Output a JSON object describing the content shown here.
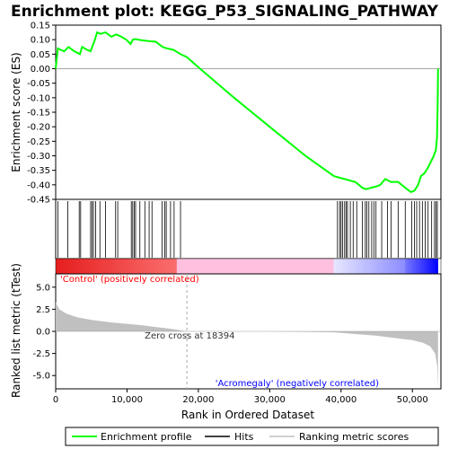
{
  "chart_data": {
    "type": "line",
    "title": "Enrichment plot: KEGG_P53_SIGNALING_PATHWAY",
    "x_label": "Rank in Ordered Dataset",
    "es_label": "Enrichment score (ES)",
    "metric_label": "Ranked list metric (tTest)",
    "x_range": [
      0,
      54000
    ],
    "x_ticks": [
      0,
      10000,
      20000,
      30000,
      40000,
      50000
    ],
    "x_tick_labels": [
      "0",
      "10,000",
      "20,000",
      "30,000",
      "40,000",
      "50,000"
    ],
    "es_range": [
      -0.45,
      0.15
    ],
    "es_ticks": [
      0.15,
      0.1,
      0.05,
      0.0,
      -0.05,
      -0.1,
      -0.15,
      -0.2,
      -0.25,
      -0.3,
      -0.35,
      -0.4,
      -0.45
    ],
    "es_tick_labels": [
      "0.15",
      "0.10",
      "0.05",
      "0.00",
      "-0.05",
      "-0.10",
      "-0.15",
      "-0.20",
      "-0.25",
      "-0.30",
      "-0.35",
      "-0.40",
      "-0.45"
    ],
    "metric_range": [
      -6.5,
      6.5
    ],
    "metric_ticks": [
      5.0,
      2.5,
      0.0,
      -2.5,
      -5.0
    ],
    "metric_tick_labels": [
      "5.0",
      "2.5",
      "0.0",
      "-2.5",
      "-5.0"
    ],
    "enrichment_profile": {
      "x": [
        0,
        300,
        700,
        1200,
        1800,
        2600,
        3400,
        3700,
        4400,
        4900,
        5200,
        5500,
        5800,
        6300,
        7000,
        7800,
        8500,
        9200,
        9900,
        10500,
        10800,
        11200,
        12000,
        13000,
        14000,
        15000,
        15600,
        16500,
        17500,
        18394,
        20000,
        25000,
        30000,
        35000,
        39000,
        40500,
        42000,
        43000,
        43500,
        44200,
        45000,
        45500,
        46200,
        47000,
        48000,
        49000,
        49800,
        50300,
        50800,
        51200,
        51700,
        52200,
        52600,
        53000,
        53300,
        53450,
        53550,
        53600
      ],
      "y": [
        0.0,
        0.07,
        0.065,
        0.06,
        0.075,
        0.06,
        0.05,
        0.075,
        0.065,
        0.06,
        0.08,
        0.1,
        0.125,
        0.12,
        0.125,
        0.11,
        0.118,
        0.11,
        0.1,
        0.085,
        0.1,
        0.102,
        0.098,
        0.095,
        0.093,
        0.075,
        0.07,
        0.065,
        0.05,
        0.04,
        0.005,
        -0.1,
        -0.2,
        -0.3,
        -0.37,
        -0.38,
        -0.39,
        -0.41,
        -0.415,
        -0.41,
        -0.405,
        -0.4,
        -0.38,
        -0.39,
        -0.39,
        -0.41,
        -0.425,
        -0.42,
        -0.4,
        -0.37,
        -0.36,
        -0.34,
        -0.32,
        -0.3,
        -0.28,
        -0.24,
        -0.12,
        0.0
      ]
    },
    "hits": [
      300,
      1700,
      3300,
      3500,
      4900,
      5100,
      5300,
      5600,
      6200,
      7000,
      8400,
      8700,
      10600,
      10800,
      11000,
      11200,
      11800,
      12500,
      13100,
      13500,
      14900,
      15300,
      15500,
      16100,
      16600,
      17500,
      39500,
      39800,
      40000,
      40200,
      40500,
      40700,
      40900,
      41300,
      41700,
      42200,
      43000,
      43400,
      43600,
      43900,
      44300,
      44600,
      44900,
      45700,
      46500,
      47000,
      48000,
      49000,
      49900,
      50300,
      50600,
      51000,
      51400,
      51800,
      52200,
      52700,
      53100,
      53300,
      53500
    ],
    "metric": {
      "x": [
        0,
        500,
        1500,
        3000,
        5000,
        8000,
        10000,
        12000,
        14000,
        16000,
        18394,
        20000,
        30000,
        39000,
        42000,
        45000,
        48000,
        50000,
        51500,
        52500,
        53200,
        53500,
        53600
      ],
      "y": [
        3.3,
        2.5,
        2.0,
        1.6,
        1.3,
        1.0,
        0.85,
        0.7,
        0.5,
        0.3,
        0.0,
        0.0,
        0.0,
        -0.1,
        -0.3,
        -0.5,
        -0.8,
        -1.0,
        -1.3,
        -1.7,
        -2.5,
        -4.0,
        -6.5
      ]
    },
    "zero_cross": 18394,
    "annotations": {
      "positive": "'Control' (positively correlated)",
      "negative": "'Acromegaly' (negatively correlated)",
      "zero_cross": "Zero cross at 18394"
    },
    "legend": {
      "position": "bottom",
      "items": [
        "Enrichment profile",
        "Hits",
        "Ranking metric scores"
      ]
    },
    "colors": {
      "profile": "#00ff00",
      "hits": "#000000",
      "metric": "#c0c0c0",
      "positive_text": "#ff0000",
      "negative_text": "#0000ff",
      "bar_red": "#ff0000",
      "bar_pink": "#ffc0e0",
      "bar_blue": "#0000ff"
    }
  }
}
